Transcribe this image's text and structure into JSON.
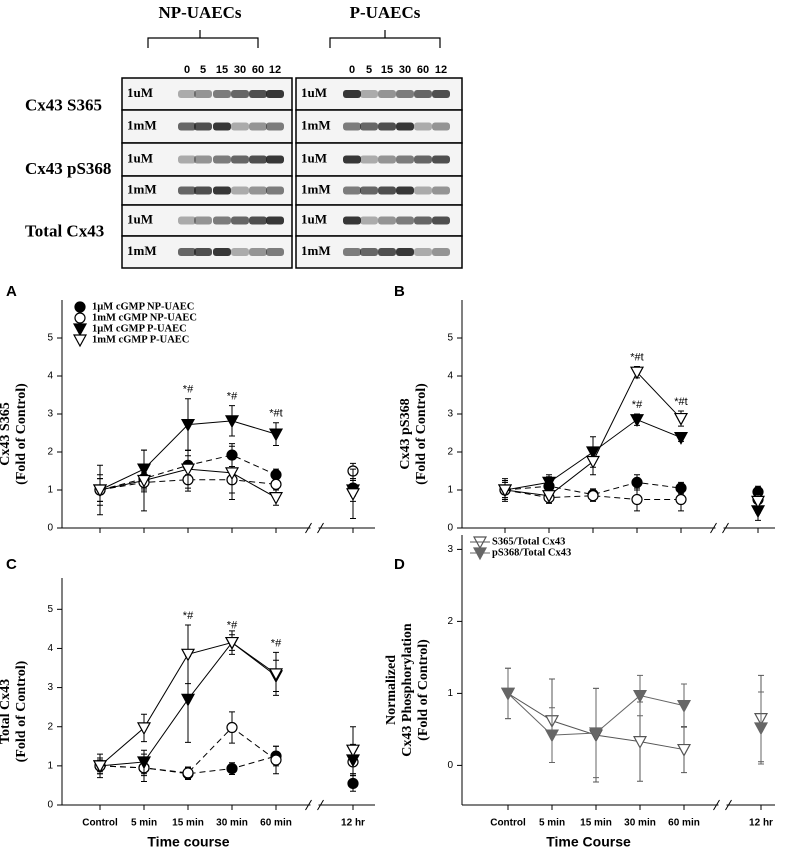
{
  "blot": {
    "groups": [
      "NP-UAECs",
      "P-UAECs"
    ],
    "time_labels": [
      "0",
      "5",
      "15",
      "30",
      "60",
      "12"
    ],
    "proteins": [
      "Cx43 S365",
      "Cx43 pS368",
      "Total Cx43"
    ],
    "doses": [
      "1uM",
      "1mM"
    ]
  },
  "chart_data": [
    {
      "type": "line",
      "panel": "A",
      "ylabel": [
        "Cx43 S365",
        "(Fold of Control)"
      ],
      "categories": [
        null,
        null,
        null,
        null,
        null,
        null
      ],
      "axis_break": true,
      "legend": "upper left",
      "ylim": [
        0,
        6
      ],
      "yticks": [
        0,
        1,
        2,
        3,
        4,
        5
      ],
      "series": [
        {
          "name": "1µM cGMP NP-UAEC",
          "marker": "circle",
          "filled": true,
          "color": "#000",
          "dashed": true,
          "values": [
            1,
            1.3,
            1.65,
            1.92,
            1.4,
            1.05
          ],
          "errors": [
            0.3,
            0.3,
            0.25,
            0.3,
            0.15,
            0.2
          ]
        },
        {
          "name": "1mM cGMP NP-UAEC",
          "marker": "circle",
          "filled": false,
          "color": "#000",
          "dashed": true,
          "values": [
            1,
            1.2,
            1.27,
            1.27,
            1.15,
            1.5
          ],
          "errors": [
            0.3,
            0.25,
            0.3,
            0.35,
            0.3,
            0.2
          ]
        },
        {
          "name": "1µM cGMP P-UAEC",
          "marker": "triangle",
          "filled": true,
          "color": "#000",
          "dashed": false,
          "values": [
            1,
            1.55,
            2.72,
            2.82,
            2.47,
            1.0
          ],
          "errors": [
            0.65,
            0.5,
            0.68,
            0.4,
            0.3,
            0.3
          ]
        },
        {
          "name": "1mM cGMP P-UAEC",
          "marker": "triangle",
          "filled": false,
          "color": "#000",
          "dashed": false,
          "values": [
            1,
            1.25,
            1.55,
            1.45,
            0.8,
            0.9
          ],
          "errors": [
            0.4,
            0.8,
            0.5,
            0.7,
            0.2,
            0.65
          ]
        }
      ],
      "annotations": [
        {
          "text": "*#",
          "series": 2,
          "index": 2
        },
        {
          "text": "*#",
          "series": 2,
          "index": 3
        },
        {
          "text": "*#t",
          "series": 2,
          "index": 4
        }
      ]
    },
    {
      "type": "line",
      "panel": "B",
      "ylabel": [
        "Cx43 pS368",
        "(Fold of Control)"
      ],
      "categories": [
        null,
        null,
        null,
        null,
        null,
        null
      ],
      "axis_break": true,
      "ylim": [
        0,
        6
      ],
      "yticks": [
        0,
        1,
        2,
        3,
        4,
        5
      ],
      "series": [
        {
          "marker": "circle",
          "filled": true,
          "color": "#000",
          "dashed": true,
          "values": [
            1,
            1.1,
            0.88,
            1.2,
            1.05,
            0.95
          ],
          "errors": [
            0.2,
            0.25,
            0.15,
            0.2,
            0.15,
            0.15
          ]
        },
        {
          "marker": "circle",
          "filled": false,
          "color": "#000",
          "dashed": true,
          "values": [
            1,
            0.8,
            0.85,
            0.75,
            0.75,
            0.75
          ],
          "errors": [
            0.3,
            0.15,
            0.15,
            0.3,
            0.3,
            0.3
          ]
        },
        {
          "marker": "triangle",
          "filled": true,
          "color": "#000",
          "dashed": false,
          "values": [
            1,
            1.2,
            2.0,
            2.85,
            2.38,
            0.45
          ],
          "errors": [
            0.2,
            0.2,
            0.4,
            0.15,
            0.1,
            0.25
          ]
        },
        {
          "marker": "triangle",
          "filled": false,
          "color": "#000",
          "dashed": false,
          "values": [
            1,
            0.85,
            1.75,
            4.1,
            2.88,
            0.7
          ],
          "errors": [
            0.25,
            0.2,
            0.35,
            0.15,
            0.2,
            0.3
          ]
        }
      ],
      "annotations": [
        {
          "text": "*#t",
          "series": 3,
          "index": 3
        },
        {
          "text": "*#",
          "series": 2,
          "index": 3
        },
        {
          "text": "*#t",
          "series": 3,
          "index": 4
        }
      ]
    },
    {
      "type": "line",
      "panel": "C",
      "ylabel": [
        "Total Cx43",
        "(Fold of Control)"
      ],
      "xlabel": "Time course",
      "categories": [
        "Control",
        "5 min",
        "15 min",
        "30 min",
        "60 min",
        "12 hr"
      ],
      "axis_break": true,
      "ylim": [
        0,
        5.8
      ],
      "yticks": [
        0,
        1,
        2,
        3,
        4,
        5
      ],
      "series": [
        {
          "marker": "circle",
          "filled": true,
          "color": "#000",
          "dashed": true,
          "values": [
            1,
            0.95,
            0.8,
            0.93,
            1.25,
            0.55
          ],
          "errors": [
            0.15,
            0.2,
            0.15,
            0.15,
            0.25,
            0.2
          ]
        },
        {
          "marker": "circle",
          "filled": false,
          "color": "#000",
          "dashed": true,
          "values": [
            1,
            0.95,
            0.82,
            1.98,
            1.15,
            1.1
          ],
          "errors": [
            0.3,
            0.35,
            0.15,
            0.4,
            0.35,
            0.3
          ]
        },
        {
          "marker": "triangle",
          "filled": true,
          "color": "#000",
          "dashed": false,
          "values": [
            1,
            1.1,
            2.7,
            4.15,
            3.3,
            1.15
          ],
          "errors": [
            0.2,
            0.3,
            1.1,
            0.3,
            0.4,
            0.4
          ]
        },
        {
          "marker": "triangle",
          "filled": false,
          "color": "#000",
          "dashed": false,
          "values": [
            1,
            1.97,
            3.85,
            4.15,
            3.35,
            1.4
          ],
          "errors": [
            0.2,
            0.35,
            0.75,
            0.2,
            0.55,
            0.6
          ]
        }
      ],
      "annotations": [
        {
          "text": "*#",
          "series": 3,
          "index": 2
        },
        {
          "text": "*#",
          "series": 3,
          "index": 3
        },
        {
          "text": "*#",
          "series": 3,
          "index": 4
        }
      ]
    },
    {
      "type": "line",
      "panel": "D",
      "ylabel": [
        "Normalized",
        "Cx43 Phosphorylation",
        "(Fold of Control)"
      ],
      "xlabel": "Time Course",
      "categories": [
        "Control",
        "5 min",
        "15 min",
        "30 min",
        "60 min",
        "12 hr"
      ],
      "axis_break": true,
      "legend": "upper left",
      "ylim": [
        -0.55,
        3.2
      ],
      "yticks": [
        0,
        1,
        2,
        3
      ],
      "series": [
        {
          "name": "S365/Total Cx43",
          "marker": "triangle",
          "filled": false,
          "color": "#555",
          "dashed": false,
          "values": [
            1,
            0.62,
            0.42,
            0.33,
            0.22,
            0.65
          ],
          "errors": [
            0.35,
            0.58,
            0.65,
            0.55,
            0.32,
            0.6
          ]
        },
        {
          "name": "pS368/Total Cx43",
          "marker": "triangle",
          "filled": true,
          "color": "#666",
          "dashed": false,
          "values": [
            1,
            0.42,
            0.45,
            0.97,
            0.83,
            0.52
          ],
          "errors": [
            0.35,
            0.38,
            0.62,
            0.28,
            0.3,
            0.5
          ]
        }
      ]
    }
  ]
}
